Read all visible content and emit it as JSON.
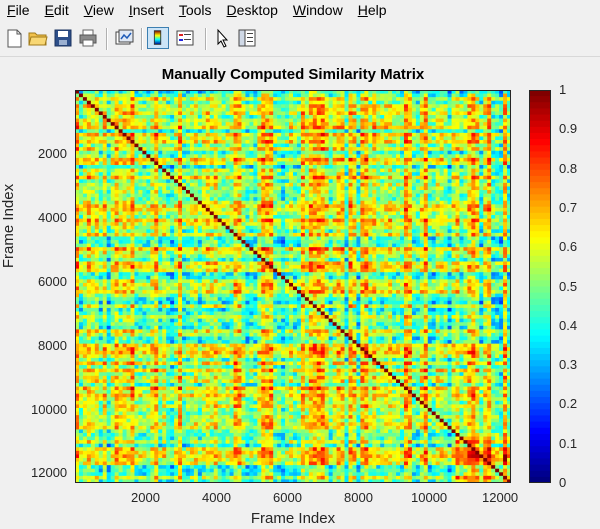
{
  "menu": [
    {
      "label": "File",
      "ul": "F",
      "rest": "ile"
    },
    {
      "label": "Edit",
      "ul": "E",
      "rest": "dit"
    },
    {
      "label": "View",
      "ul": "V",
      "rest": "iew"
    },
    {
      "label": "Insert",
      "ul": "I",
      "rest": "nsert"
    },
    {
      "label": "Tools",
      "ul": "T",
      "rest": "ools"
    },
    {
      "label": "Desktop",
      "ul": "D",
      "rest": "esktop"
    },
    {
      "label": "Window",
      "ul": "W",
      "rest": "indow"
    },
    {
      "label": "Help",
      "ul": "H",
      "rest": "elp"
    }
  ],
  "toolbar": {
    "icons": [
      "new-figure-icon",
      "open-file-icon",
      "save-icon",
      "print-icon",
      "link-plot-icon",
      "colorbar-icon",
      "legend-icon",
      "edit-plot-icon",
      "property-editor-icon"
    ]
  },
  "chart_data": {
    "type": "heatmap",
    "title": "Manually Computed Similarity Matrix",
    "xlabel": "Frame Index",
    "ylabel": "Frame Index",
    "xlim": [
      1,
      12300
    ],
    "ylim": [
      1,
      12300
    ],
    "x_ticks": [
      "2000",
      "4000",
      "6000",
      "8000",
      "10000",
      "12000"
    ],
    "y_ticks": [
      "2000",
      "4000",
      "6000",
      "8000",
      "10000",
      "12000"
    ],
    "colormap": "jet",
    "clim": [
      0,
      1
    ],
    "colorbar_ticks": [
      "0",
      "0.1",
      "0.2",
      "0.3",
      "0.4",
      "0.5",
      "0.6",
      "0.7",
      "0.8",
      "0.9",
      "1"
    ],
    "y_direction": "reverse",
    "description_values": {
      "diagonal_similarity": 1.0,
      "typical_similarity": 0.55
    }
  },
  "colors": {
    "background": "#f0f0f0",
    "axis_text": "#262626"
  }
}
